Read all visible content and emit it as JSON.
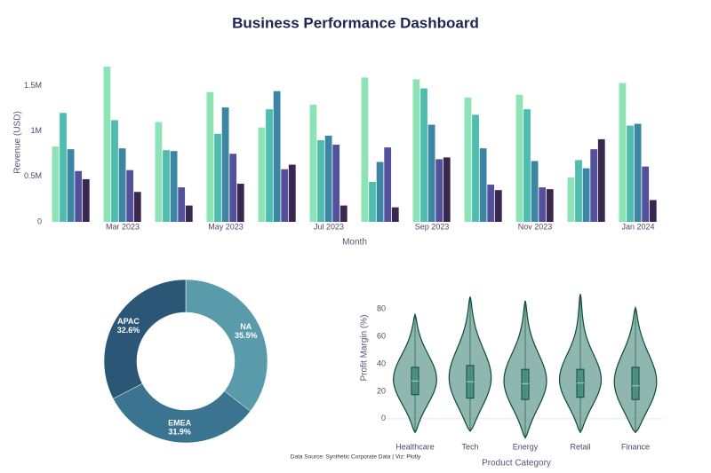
{
  "title": "Business Performance Dashboard",
  "footer": "Data Source: Synthetic Corporate Data | Viz: Plotly",
  "chart_data": [
    {
      "type": "bar",
      "categories": [
        null,
        "Mar 2023",
        null,
        "May 2023",
        null,
        "Jul 2023",
        null,
        "Sep 2023",
        null,
        "Nov 2023",
        null,
        "Jan 2024"
      ],
      "series": [
        {
          "color": "#8de3b5",
          "values": [
            830000,
            1710000,
            1100000,
            1430000,
            1040000,
            1290000,
            1590000,
            1570000,
            1370000,
            1400000,
            490000,
            1530000
          ]
        },
        {
          "color": "#4dbdb0",
          "values": [
            1200000,
            1120000,
            790000,
            970000,
            1240000,
            900000,
            440000,
            1470000,
            1180000,
            1240000,
            680000,
            1060000
          ]
        },
        {
          "color": "#3c86a3",
          "values": [
            800000,
            810000,
            780000,
            1260000,
            1440000,
            950000,
            660000,
            1070000,
            810000,
            670000,
            590000,
            1080000
          ]
        },
        {
          "color": "#54519b",
          "values": [
            560000,
            570000,
            380000,
            750000,
            580000,
            850000,
            820000,
            690000,
            410000,
            380000,
            800000,
            610000
          ]
        },
        {
          "color": "#3a2750",
          "values": [
            470000,
            330000,
            180000,
            420000,
            630000,
            180000,
            160000,
            710000,
            350000,
            360000,
            910000,
            240000
          ]
        }
      ],
      "ylim": [
        0,
        1750000
      ],
      "yticks": [
        0,
        {
          "value": 500000,
          "label": "0.5M"
        },
        {
          "value": 1000000,
          "label": "1M"
        },
        {
          "value": 1500000,
          "label": "1.5M"
        }
      ],
      "grid": false,
      "x_label": "Month",
      "y_label": "Revenue (USD)"
    },
    {
      "type": "pie",
      "labels": [
        "NA",
        "EMEA",
        "APAC"
      ],
      "values": [
        35.5,
        31.9,
        32.6
      ],
      "value_labels": [
        "35.5%",
        "31.9%",
        "32.6%"
      ],
      "colors": [
        "#5a9bab",
        "#3b7491",
        "#2b5676"
      ],
      "hole": true
    },
    {
      "type": "violin",
      "categories": [
        "Healthcare",
        "Tech",
        "Energy",
        "Retail",
        "Finance"
      ],
      "low": [
        -10,
        -9,
        -14,
        -10,
        -10
      ],
      "q1": [
        17.5,
        15,
        14,
        15.6,
        14
      ],
      "median": [
        27.5,
        27,
        25.6,
        26,
        24
      ],
      "q3": [
        37.5,
        38.8,
        36,
        36,
        37.5
      ],
      "high": [
        76,
        89,
        86,
        91,
        81
      ],
      "color": "#6a9e94",
      "line_color": "#0d4a3c",
      "ylim": [
        -15,
        95
      ],
      "yticks": [
        0,
        20,
        40,
        60,
        80
      ],
      "x_label": "Product Category",
      "y_label": "Profit Margin (%)"
    }
  ]
}
